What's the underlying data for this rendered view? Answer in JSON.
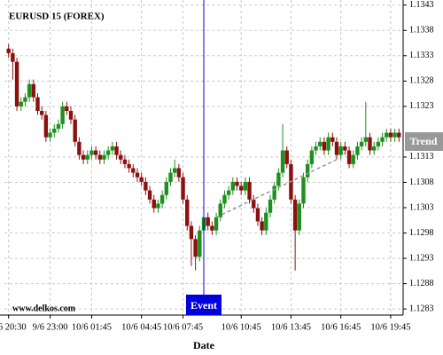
{
  "chart_data": {
    "type": "candlestick",
    "title": "EURUSD 15 (FOREX)",
    "x_label": "Date",
    "watermark": "www.delkos.com",
    "open": [
      1.13344,
      1.13335,
      1.13318,
      1.1323,
      1.13239,
      1.13248,
      1.13274,
      1.13248,
      1.13221,
      1.13213,
      1.13169,
      1.13178,
      1.13186,
      1.13195,
      1.1323,
      1.13221,
      1.13204,
      1.1316,
      1.13134,
      1.13125,
      1.13134,
      1.13143,
      1.13134,
      1.13125,
      1.13134,
      1.13143,
      1.13151,
      1.13134,
      1.13125,
      1.13116,
      1.13108,
      1.13099,
      1.1309,
      1.13081,
      1.13064,
      1.13046,
      1.13029,
      1.13038,
      1.13055,
      1.13081,
      1.13099,
      1.13108,
      1.1309,
      1.13046,
      1.12994,
      1.12968,
      1.12933,
      1.12985,
      1.13011,
      1.12994,
      1.12985,
      1.13011,
      1.13038,
      1.13055,
      1.13064,
      1.13081,
      1.13073,
      1.13064,
      1.13081,
      1.13046,
      1.13029,
      1.13003,
      1.12985,
      1.1302,
      1.13046,
      1.13073,
      1.13099,
      1.13143,
      1.13116,
      1.13046,
      1.12985,
      1.13038,
      1.1309,
      1.13116,
      1.13143,
      1.13151,
      1.1316,
      1.13143,
      1.13169,
      1.1316,
      1.13134,
      1.13151,
      1.13143,
      1.13116,
      1.13134,
      1.13151,
      1.1316,
      1.13169,
      1.13143,
      1.13151,
      1.1316,
      1.13169,
      1.13178,
      1.13169,
      1.13178
    ],
    "high": [
      1.13353,
      1.13344,
      1.13326,
      1.13248,
      1.13256,
      1.13283,
      1.13283,
      1.13256,
      1.1323,
      1.13221,
      1.13186,
      1.13195,
      1.13204,
      1.13239,
      1.13239,
      1.1323,
      1.13213,
      1.13169,
      1.13143,
      1.13143,
      1.13151,
      1.13151,
      1.13143,
      1.13143,
      1.13151,
      1.1316,
      1.1316,
      1.13143,
      1.13134,
      1.13125,
      1.13116,
      1.13108,
      1.13099,
      1.1309,
      1.13073,
      1.13055,
      1.13046,
      1.13064,
      1.1309,
      1.13108,
      1.13125,
      1.13116,
      1.13099,
      1.13055,
      1.13003,
      1.12976,
      1.12994,
      1.1302,
      1.1302,
      1.13003,
      1.1302,
      1.13046,
      1.13064,
      1.13073,
      1.1309,
      1.1309,
      1.13081,
      1.1309,
      1.1309,
      1.13055,
      1.13038,
      1.13011,
      1.13029,
      1.13055,
      1.13081,
      1.13108,
      1.13195,
      1.13151,
      1.13125,
      1.13055,
      1.13046,
      1.13099,
      1.13125,
      1.13151,
      1.1316,
      1.13169,
      1.13169,
      1.13178,
      1.13178,
      1.13169,
      1.1316,
      1.1316,
      1.13151,
      1.13143,
      1.1316,
      1.13169,
      1.13239,
      1.13178,
      1.1316,
      1.13169,
      1.13178,
      1.13186,
      1.13186,
      1.13186,
      1.13186
    ],
    "low": [
      1.13326,
      1.13283,
      1.13221,
      1.13221,
      1.1323,
      1.13239,
      1.13239,
      1.13213,
      1.13204,
      1.1316,
      1.1316,
      1.13169,
      1.13178,
      1.13186,
      1.13213,
      1.13195,
      1.13151,
      1.13125,
      1.13116,
      1.13116,
      1.13125,
      1.13125,
      1.13116,
      1.13116,
      1.13125,
      1.13134,
      1.13125,
      1.13116,
      1.13108,
      1.13099,
      1.1309,
      1.13081,
      1.13073,
      1.13055,
      1.13038,
      1.1302,
      1.1302,
      1.13029,
      1.13046,
      1.13073,
      1.1309,
      1.13081,
      1.13038,
      1.12985,
      1.12915,
      1.12906,
      1.12924,
      1.12976,
      1.12985,
      1.12976,
      1.12976,
      1.13003,
      1.13029,
      1.13046,
      1.13055,
      1.13064,
      1.13055,
      1.13055,
      1.13038,
      1.1302,
      1.12994,
      1.12976,
      1.12976,
      1.13011,
      1.13038,
      1.13064,
      1.1309,
      1.13108,
      1.13038,
      1.12906,
      1.12976,
      1.13029,
      1.13081,
      1.13108,
      1.13134,
      1.13143,
      1.13134,
      1.13134,
      1.13151,
      1.13125,
      1.13125,
      1.13134,
      1.13108,
      1.13108,
      1.13125,
      1.13143,
      1.13151,
      1.13134,
      1.13134,
      1.13143,
      1.13151,
      1.1316,
      1.1316,
      1.1316,
      1.1316
    ],
    "close": [
      1.13335,
      1.13318,
      1.1323,
      1.13239,
      1.13248,
      1.13274,
      1.13248,
      1.13221,
      1.13213,
      1.13169,
      1.13178,
      1.13186,
      1.13195,
      1.1323,
      1.13221,
      1.13204,
      1.1316,
      1.13134,
      1.13125,
      1.13134,
      1.13143,
      1.13134,
      1.13125,
      1.13134,
      1.13143,
      1.13151,
      1.13134,
      1.13125,
      1.13116,
      1.13108,
      1.13099,
      1.1309,
      1.13081,
      1.13064,
      1.13046,
      1.13029,
      1.13038,
      1.13055,
      1.13081,
      1.13099,
      1.13108,
      1.1309,
      1.13046,
      1.12994,
      1.12968,
      1.12933,
      1.12985,
      1.13011,
      1.12994,
      1.12985,
      1.13011,
      1.13038,
      1.13055,
      1.13064,
      1.13081,
      1.13073,
      1.13064,
      1.13081,
      1.13046,
      1.13029,
      1.13003,
      1.12985,
      1.1302,
      1.13046,
      1.13073,
      1.13099,
      1.13143,
      1.13116,
      1.13046,
      1.12985,
      1.13038,
      1.1309,
      1.13116,
      1.13143,
      1.13151,
      1.1316,
      1.13143,
      1.13169,
      1.1316,
      1.13134,
      1.13151,
      1.13143,
      1.13116,
      1.13134,
      1.13151,
      1.1316,
      1.13169,
      1.13143,
      1.13151,
      1.1316,
      1.13169,
      1.13178,
      1.13169,
      1.13178,
      1.13169
    ],
    "up_color": "#1f8f1f",
    "down_color": "#8b1010",
    "xlim": [
      -1,
      95
    ],
    "xticks": [
      {
        "value": 0,
        "label": "9/6 20:30"
      },
      {
        "value": 10,
        "label": "9/6 23:00"
      },
      {
        "value": 20,
        "label": "10/6 01:45"
      },
      {
        "value": 32,
        "label": "10/6 04:45"
      },
      {
        "value": 42,
        "label": "10/6 07:45"
      },
      {
        "value": 56,
        "label": "10/6 10:45"
      },
      {
        "value": 68,
        "label": "10/6 13:45"
      },
      {
        "value": 80,
        "label": "10/6 16:45"
      },
      {
        "value": 92,
        "label": "10/6 19:45"
      }
    ],
    "ylim": [
      1.12818,
      1.1344
    ],
    "yticks": [
      1.1343,
      1.1338,
      1.1333,
      1.1328,
      1.1323,
      1.1313,
      1.1308,
      1.1303,
      1.1298,
      1.1293,
      1.1288,
      1.1283
    ],
    "grid": true,
    "event": {
      "x": 47,
      "label": "Event",
      "color": "#0000dd"
    },
    "trend": {
      "x": [
        50,
        79
      ],
      "y": [
        1.13011,
        1.13125
      ],
      "label": "Trend",
      "color": "#999999"
    }
  }
}
